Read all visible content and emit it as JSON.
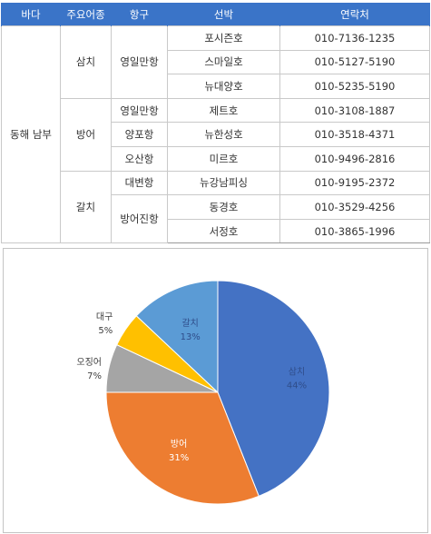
{
  "table": {
    "headers": [
      "바다",
      "주요어종",
      "항구",
      "선박",
      "연락처"
    ],
    "sea": "동해 남부",
    "species": [
      {
        "name": "삼치",
        "ports": [
          {
            "name": "영일만항",
            "boats": [
              {
                "name": "포시즌호",
                "phone": "010-7136-1235"
              },
              {
                "name": "스마일호",
                "phone": "010-5127-5190"
              },
              {
                "name": "뉴대양호",
                "phone": "010-5235-5190"
              }
            ]
          }
        ]
      },
      {
        "name": "방어",
        "ports": [
          {
            "name": "영일만항",
            "boats": [
              {
                "name": "제트호",
                "phone": "010-3108-1887"
              }
            ]
          },
          {
            "name": "양포항",
            "boats": [
              {
                "name": "뉴한성호",
                "phone": "010-3518-4371"
              }
            ]
          },
          {
            "name": "오산항",
            "boats": [
              {
                "name": "미르호",
                "phone": "010-9496-2816"
              }
            ]
          }
        ]
      },
      {
        "name": "갈치",
        "ports": [
          {
            "name": "대변항",
            "boats": [
              {
                "name": "뉴강남피싱",
                "phone": "010-9195-2372"
              }
            ]
          },
          {
            "name": "방어진항",
            "boats": [
              {
                "name": "동경호",
                "phone": "010-3529-4256"
              },
              {
                "name": "서정호",
                "phone": "010-3865-1996"
              }
            ]
          }
        ]
      }
    ]
  },
  "chart_data": {
    "type": "pie",
    "title": "",
    "start": "12 o'clock, clockwise",
    "slices": [
      {
        "label": "삼치",
        "value": 44,
        "pct_label": "44%",
        "color": "#4472c4",
        "label_color": "#2f4d8a"
      },
      {
        "label": "방어",
        "value": 31,
        "pct_label": "31%",
        "color": "#ed7d31",
        "label_color": "#ffffff"
      },
      {
        "label": "오징어",
        "value": 7,
        "pct_label": "7%",
        "color": "#a5a5a5",
        "label_color": "#404040"
      },
      {
        "label": "대구",
        "value": 5,
        "pct_label": "5%",
        "color": "#ffc000",
        "label_color": "#404040"
      },
      {
        "label": "갈치",
        "value": 13,
        "pct_label": "13%",
        "color": "#5b9bd5",
        "label_color": "#2f4d8a"
      }
    ]
  }
}
